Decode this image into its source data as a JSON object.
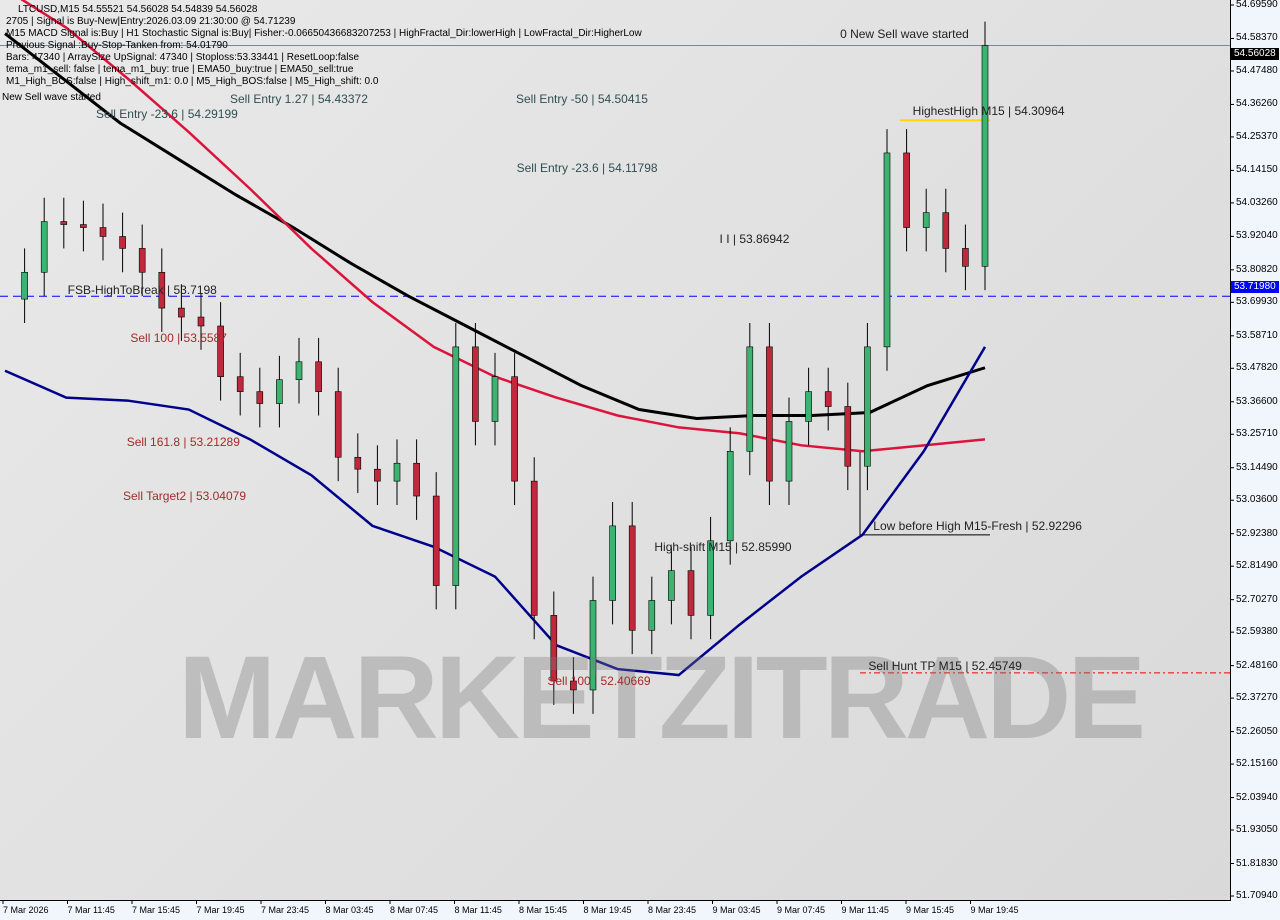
{
  "header": {
    "symbol_line": "LTCUSD,M15  54.55521 54.56028 54.54839 54.56028",
    "lines": [
      "2705 | Signal is Buy-New|Entry:2026.03.09 21:30:00 @ 54.71239",
      "M15 MACD Signal is:Buy | H1 Stochastic Signal is:Buy| Fisher:-0.06650436683207253 | HighFractal_Dir:lowerHigh | LowFractal_Dir:HigherLow",
      "Previous Signal :Buy-Stop-Tanken from: 54.01790",
      "Bars: 47340 | ArraySize UpSignal: 47340 | Stoploss:53.33441 | ResetLoop:false",
      "tema_m1_sell: false | tema_m1_buy: true | EMA50_buy:true | EMA50_sell:true",
      "M1_High_BOS:false | High_shift_m1: 0.0 | M5_High_BOS:false | M5_High_shift: 0.0"
    ],
    "overlay_note": "New Sell wave started"
  },
  "watermark": "MARKETZITRADE",
  "chart_data": {
    "type": "candlestick",
    "symbol": "LTCUSD",
    "timeframe": "M15",
    "ylim": [
      51.7094,
      54.6959
    ],
    "y_ticks": [
      "54.69590",
      "54.58370",
      "54.47480",
      "54.36260",
      "54.25370",
      "54.14150",
      "54.03260",
      "53.92040",
      "53.80820",
      "53.69930",
      "53.58710",
      "53.47820",
      "53.36600",
      "53.25710",
      "53.14490",
      "53.03600",
      "52.92380",
      "52.81490",
      "52.70270",
      "52.59380",
      "52.48160",
      "52.37270",
      "52.26050",
      "52.15160",
      "52.03940",
      "51.93050",
      "51.81830",
      "51.70940"
    ],
    "x_ticks": [
      "7 Mar 2026",
      "7 Mar 11:45",
      "7 Mar 15:45",
      "7 Mar 19:45",
      "7 Mar 23:45",
      "8 Mar 03:45",
      "8 Mar 07:45",
      "8 Mar 11:45",
      "8 Mar 15:45",
      "8 Mar 19:45",
      "8 Mar 23:45",
      "9 Mar 03:45",
      "9 Mar 07:45",
      "9 Mar 11:45",
      "9 Mar 15:45",
      "9 Mar 19:45"
    ],
    "closes": [
      53.71,
      53.8,
      53.97,
      53.96,
      53.95,
      53.92,
      53.88,
      53.8,
      53.68,
      53.65,
      53.62,
      53.45,
      53.4,
      53.36,
      53.44,
      53.5,
      53.4,
      53.18,
      53.14,
      53.1,
      53.16,
      53.05,
      52.75,
      53.55,
      53.3,
      53.45,
      53.1,
      52.65,
      52.43,
      52.4,
      52.7,
      52.95,
      52.6,
      52.7,
      52.8,
      52.65,
      52.9,
      53.2,
      53.55,
      53.1,
      53.3,
      53.4,
      53.35,
      53.15,
      53.55,
      54.2,
      53.95,
      54.0,
      53.88,
      53.82,
      54.56
    ],
    "series": [
      {
        "color": "#000000",
        "values": [
          54.6,
          54.45,
          54.3,
          54.18,
          54.06,
          53.95,
          53.83,
          53.72,
          53.62,
          53.52,
          53.42,
          53.34,
          53.31,
          53.32,
          53.32,
          53.33,
          53.42,
          53.48
        ]
      },
      {
        "color": "#dc143c",
        "values": [
          54.75,
          54.62,
          54.45,
          54.27,
          54.08,
          53.88,
          53.7,
          53.55,
          53.45,
          53.38,
          53.32,
          53.28,
          53.26,
          53.22,
          53.2,
          53.22,
          53.24
        ]
      },
      {
        "color": "#00008b",
        "values": [
          53.47,
          53.38,
          53.37,
          53.34,
          53.24,
          53.12,
          52.95,
          52.88,
          52.78,
          52.55,
          52.47,
          52.45,
          52.62,
          52.78,
          52.92,
          53.2,
          53.55
        ]
      }
    ],
    "current_price": "54.56028",
    "current_price_color": "#000000",
    "level_price": "53.71980",
    "level_color": "#0000ff",
    "levels": [
      {
        "text": "Sell Entry -50 | 54.50415",
        "price": 54.54,
        "at": 0.42,
        "color": "#2f4f4f"
      },
      {
        "text": "Sell Entry -23.6 | 54.29199",
        "price": 54.33,
        "at": 0.078,
        "color": "#2f4f4f"
      },
      {
        "text": "Sell Entry 1.27 | 54.43372",
        "price": 54.43,
        "at": 0.078,
        "color": "#2f4f4f"
      },
      {
        "text": "Sell Entry -23.6 | 54.11798",
        "price": 54.15,
        "at": 0.42,
        "color": "#2f4f4f"
      },
      {
        "text": "I I | 53.86942",
        "price": 53.91,
        "at": 0.585,
        "color": "#222"
      },
      {
        "text": "FSB-HighToBreak | 53.7198",
        "price": 53.74,
        "at": 0.055,
        "color": "#222"
      },
      {
        "text": "Sell 100 | 53.5587",
        "price": 53.58,
        "at": 0.106,
        "color": "#a52a2a"
      },
      {
        "text": "Sell 161.8 | 53.21289",
        "price": 53.23,
        "at": 0.103,
        "color": "#a52a2a"
      },
      {
        "text": "Sell Target2 | 53.04079",
        "price": 53.05,
        "at": 0.1,
        "color": "#a52a2a"
      },
      {
        "text": "Sell 100 | 52.40669",
        "price": 52.43,
        "at": 0.445,
        "color": "#a52a2a"
      },
      {
        "text": "High-shift M15 | 52.85990",
        "price": 52.88,
        "at": 0.532,
        "color": "#222"
      },
      {
        "text": "Low before High   M15-Fresh | 52.92296",
        "price": 52.95,
        "at": 0.71,
        "color": "#222"
      },
      {
        "text": "Sell Hunt TP M15 | 52.45749",
        "price": 52.48,
        "at": 0.706,
        "color": "#222"
      },
      {
        "text": "HighestHigh   M15 | 54.30964",
        "price": 54.34,
        "at": 0.742,
        "color": "#222"
      },
      {
        "text": "0 New Sell wave started",
        "price": 54.6,
        "at": 0.683,
        "color": "#222"
      }
    ]
  }
}
